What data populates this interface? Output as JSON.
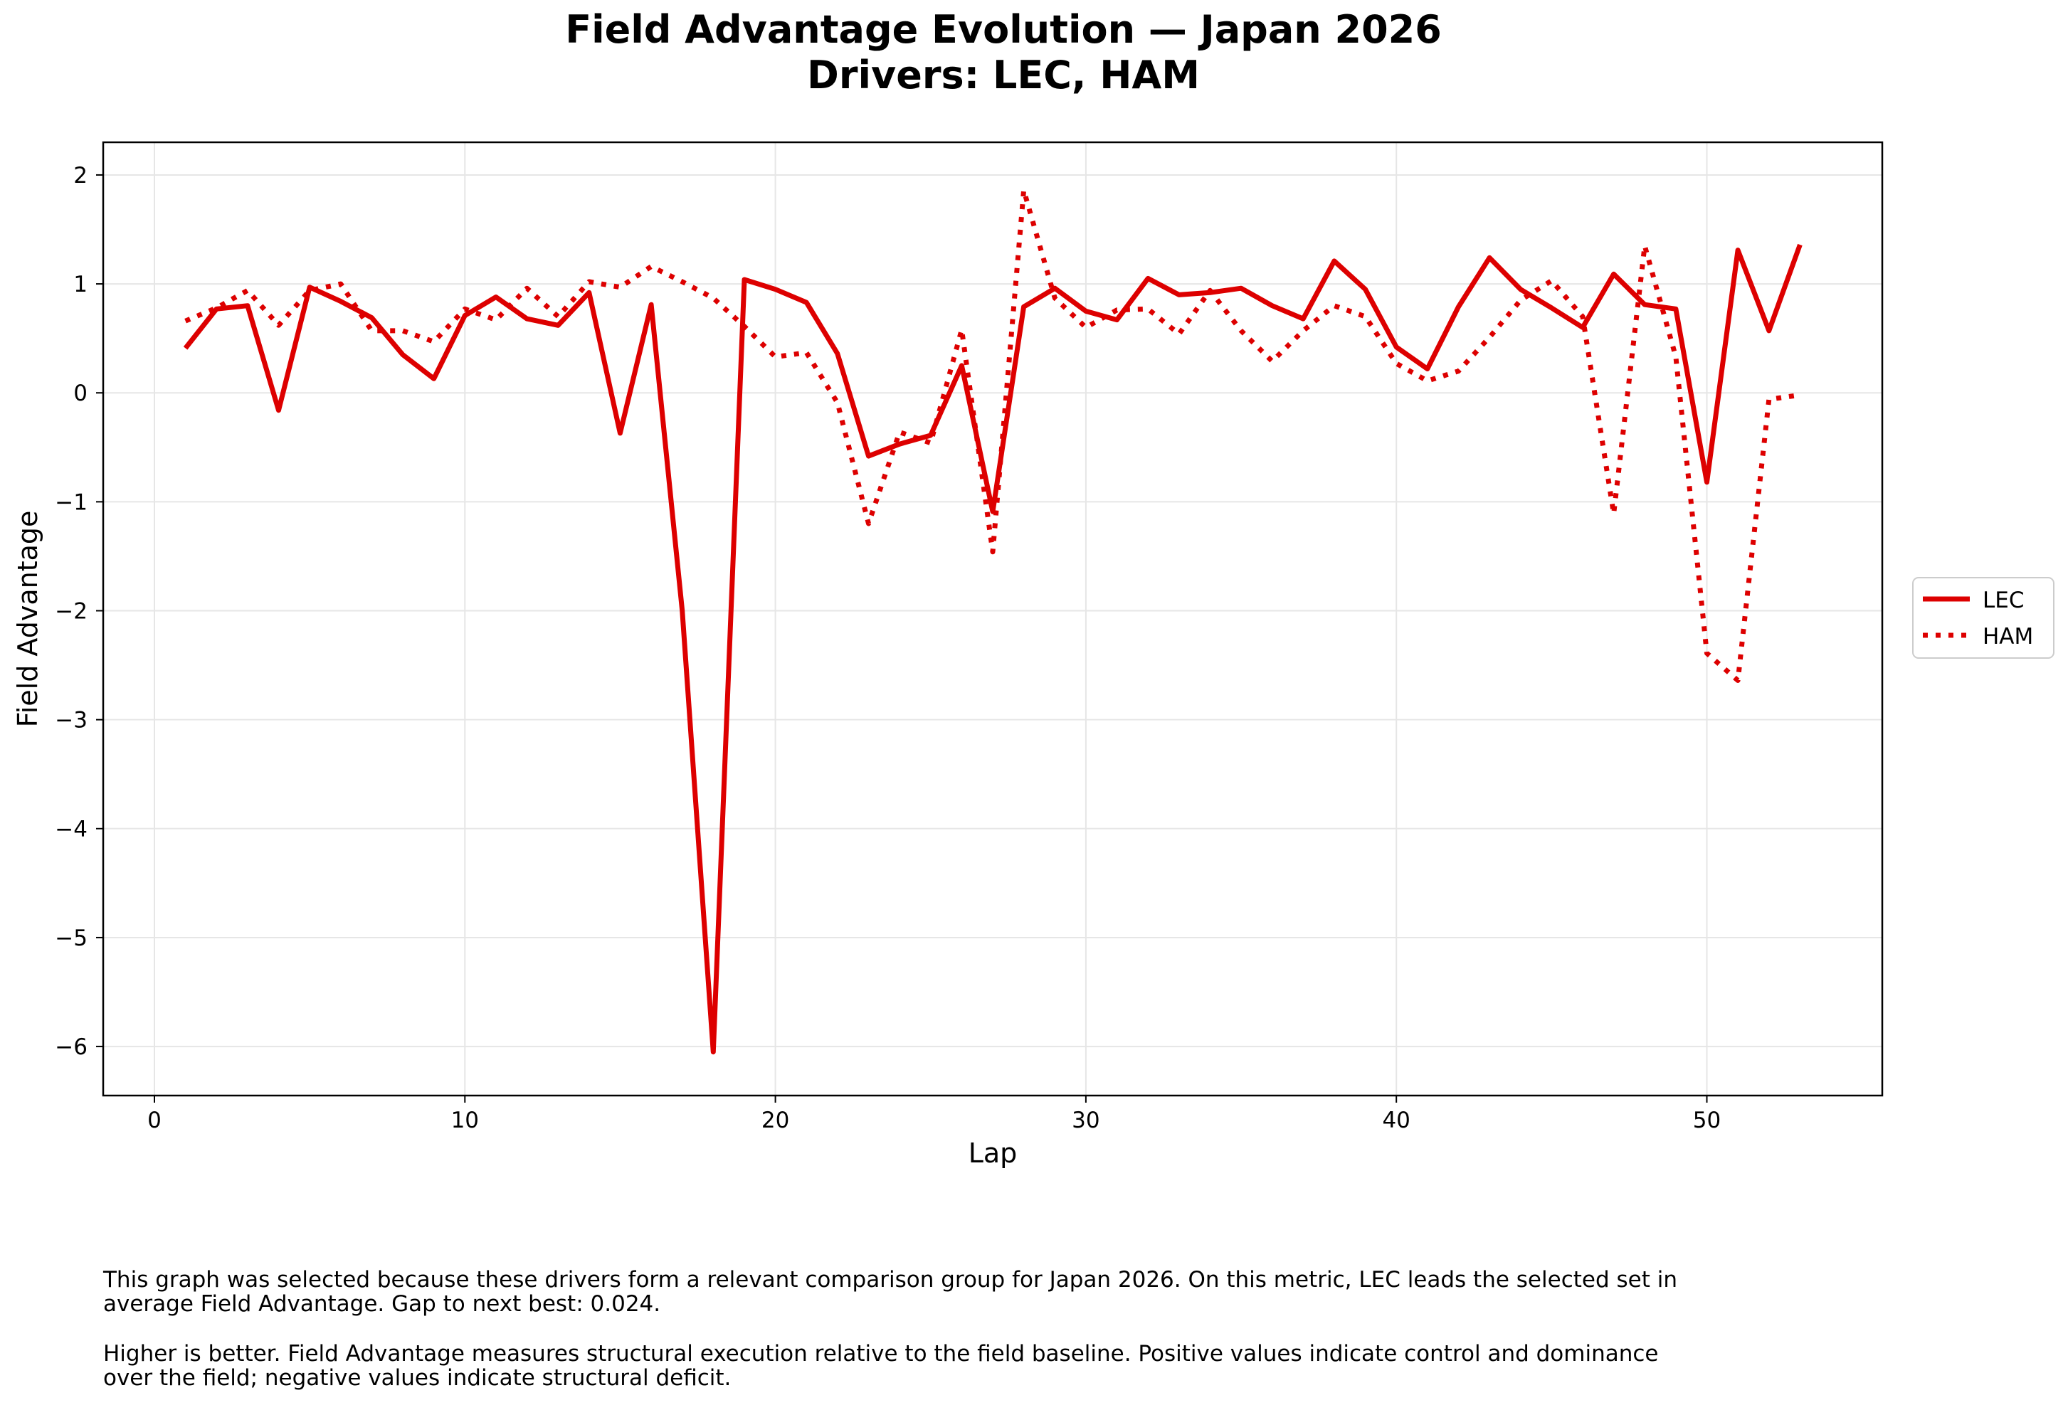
{
  "chart_data": {
    "type": "line",
    "title": "Field Advantage Evolution — Japan 2026",
    "subtitle": "Drivers: LEC, HAM",
    "xlabel": "Lap",
    "ylabel": "Field Advantage",
    "xlim": [
      -1.65,
      55.65
    ],
    "ylim": [
      -6.45,
      2.3
    ],
    "xticks": [
      0,
      10,
      20,
      30,
      40,
      50
    ],
    "yticks": [
      2,
      1,
      0,
      -1,
      -2,
      -3,
      -4,
      -5,
      -6
    ],
    "xtick_labels": [
      "0",
      "10",
      "20",
      "30",
      "40",
      "50"
    ],
    "ytick_labels": [
      "2",
      "1",
      "0",
      "−1",
      "−2",
      "−3",
      "−4",
      "−5",
      "−6"
    ],
    "grid": true,
    "legend_position": "right",
    "series": [
      {
        "name": "LEC",
        "color": "#dd0000",
        "style": "solid",
        "x": [
          1,
          2,
          3,
          4,
          5,
          6,
          7,
          8,
          9,
          10,
          11,
          12,
          13,
          14,
          15,
          16,
          17,
          18,
          19,
          20,
          21,
          22,
          23,
          24,
          25,
          26,
          27,
          28,
          29,
          30,
          31,
          32,
          33,
          34,
          35,
          36,
          37,
          38,
          39,
          40,
          41,
          42,
          43,
          44,
          45,
          46,
          47,
          48,
          49,
          50,
          51,
          52,
          53
        ],
        "values": [
          0.41,
          0.77,
          0.8,
          -0.16,
          0.97,
          0.84,
          0.69,
          0.35,
          0.13,
          0.71,
          0.88,
          0.68,
          0.62,
          0.92,
          -0.37,
          0.81,
          -2.0,
          -6.05,
          1.04,
          0.95,
          0.83,
          0.36,
          -0.58,
          -0.47,
          -0.39,
          0.25,
          -1.09,
          0.79,
          0.96,
          0.75,
          0.67,
          1.05,
          0.9,
          0.92,
          0.96,
          0.8,
          0.68,
          1.21,
          0.95,
          0.42,
          0.22,
          0.79,
          1.24,
          0.95,
          0.78,
          0.6,
          1.09,
          0.81,
          0.77,
          -0.82,
          1.31,
          0.57,
          1.36
        ]
      },
      {
        "name": "HAM",
        "color": "#dd0000",
        "style": "dotted",
        "x": [
          1,
          2,
          3,
          4,
          5,
          6,
          7,
          8,
          9,
          10,
          11,
          12,
          13,
          14,
          15,
          16,
          17,
          18,
          19,
          20,
          21,
          22,
          23,
          24,
          25,
          26,
          27,
          28,
          29,
          30,
          31,
          32,
          33,
          34,
          35,
          36,
          37,
          38,
          39,
          40,
          41,
          42,
          43,
          44,
          45,
          46,
          47,
          48,
          49,
          50,
          51,
          52,
          53
        ],
        "values": [
          0.66,
          0.78,
          0.94,
          0.62,
          0.94,
          1.0,
          0.57,
          0.57,
          0.47,
          0.77,
          0.67,
          0.96,
          0.7,
          1.02,
          0.97,
          1.16,
          1.02,
          0.87,
          0.61,
          0.33,
          0.37,
          -0.09,
          -1.2,
          -0.36,
          -0.46,
          0.58,
          -1.46,
          1.86,
          0.87,
          0.6,
          0.76,
          0.77,
          0.54,
          0.94,
          0.57,
          0.29,
          0.57,
          0.8,
          0.7,
          0.27,
          0.11,
          0.2,
          0.51,
          0.85,
          1.03,
          0.7,
          -1.11,
          1.35,
          0.33,
          -2.39,
          -2.64,
          -0.06,
          -0.02
        ]
      }
    ]
  },
  "captions": {
    "p1_line1": "This graph was selected because these drivers form a relevant comparison group for Japan 2026. On this metric, LEC leads the selected set in",
    "p1_line2": "average Field Advantage. Gap to next best: 0.024.",
    "p2_line1": "Higher is better. Field Advantage measures structural execution relative to the field baseline. Positive values indicate control and dominance",
    "p2_line2": "over the field; negative values indicate structural deficit."
  }
}
